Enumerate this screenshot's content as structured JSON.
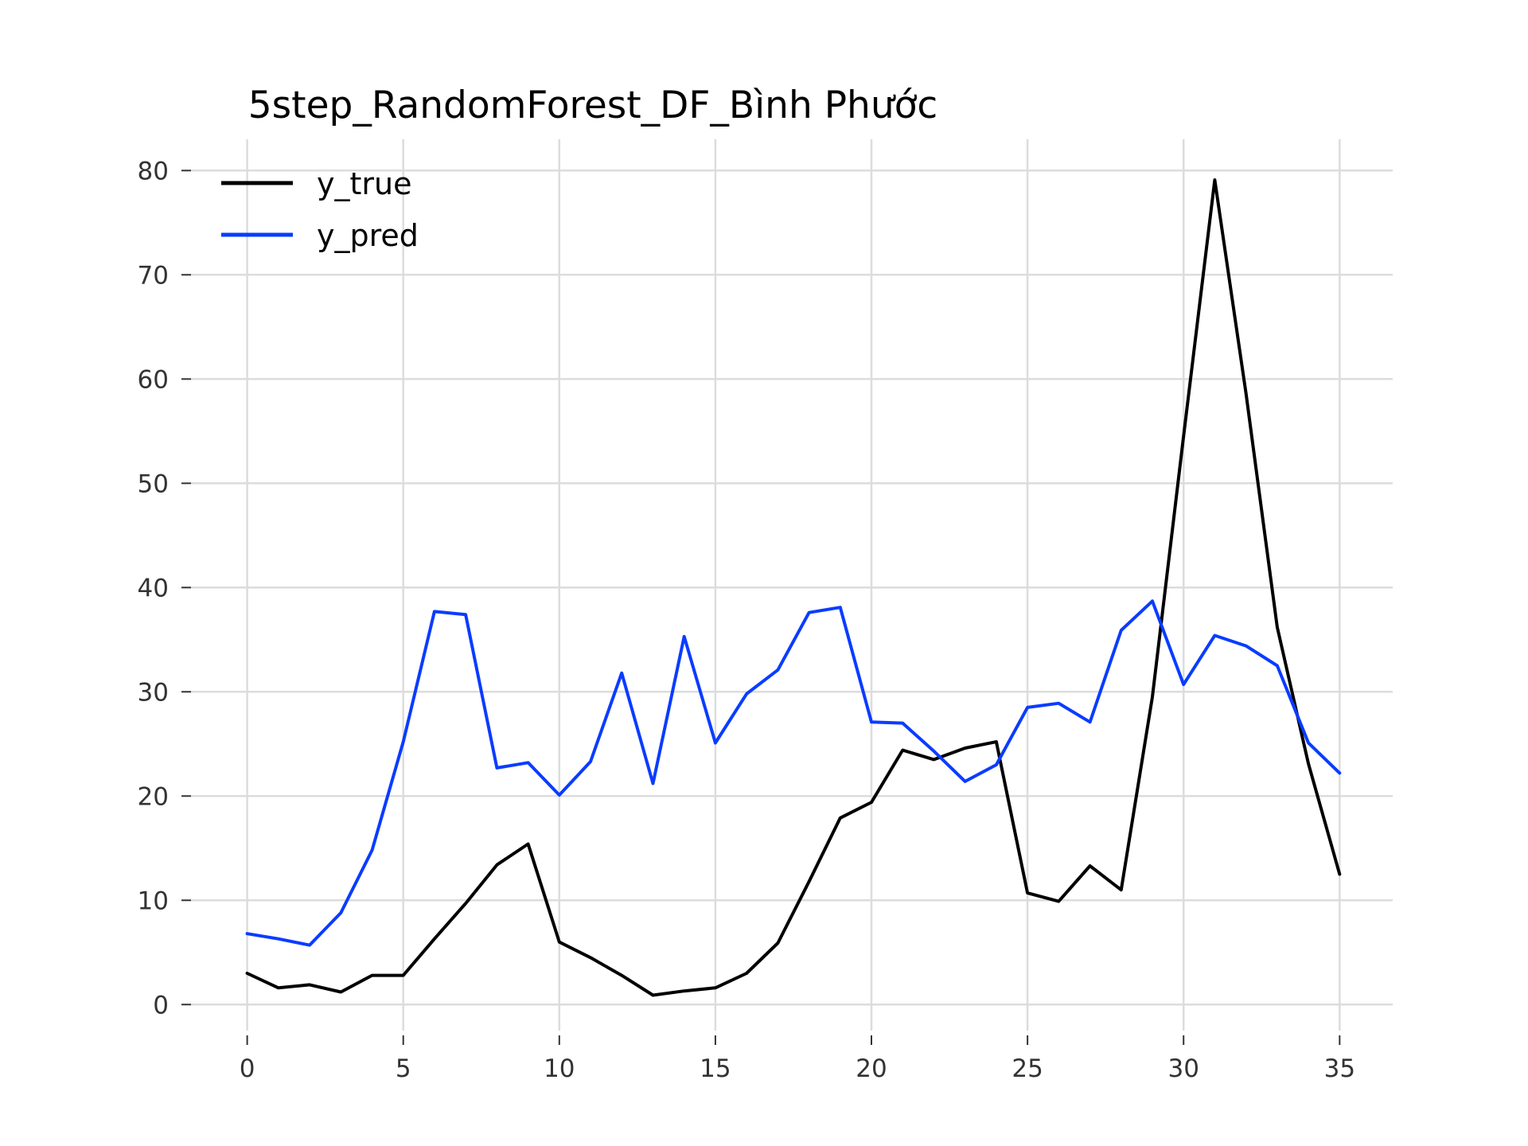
{
  "chart_data": {
    "type": "line",
    "title": "5step_RandomForest_DF_Bình Phước",
    "xlabel": "",
    "ylabel": "",
    "xlim": [
      -1.8,
      36.7
    ],
    "ylim": [
      -2.5,
      83
    ],
    "xticks": [
      0,
      5,
      10,
      15,
      20,
      25,
      30,
      35
    ],
    "yticks": [
      0,
      10,
      20,
      30,
      40,
      50,
      60,
      70,
      80
    ],
    "grid": true,
    "legend_position": "upper-left",
    "x": [
      0,
      1,
      2,
      3,
      4,
      5,
      6,
      7,
      8,
      9,
      10,
      11,
      12,
      13,
      14,
      15,
      16,
      17,
      18,
      19,
      20,
      21,
      22,
      23,
      24,
      25,
      26,
      27,
      28,
      29,
      30,
      31,
      32,
      33,
      34,
      35
    ],
    "series": [
      {
        "name": "y_true",
        "color": "#000000",
        "values": [
          3.0,
          1.6,
          1.9,
          1.2,
          2.8,
          2.8,
          6.3,
          9.7,
          13.4,
          15.4,
          6.0,
          4.5,
          2.8,
          0.9,
          1.3,
          1.6,
          3.0,
          5.9,
          11.8,
          17.9,
          19.4,
          24.4,
          23.5,
          24.6,
          25.2,
          10.7,
          9.9,
          13.3,
          11.0,
          29.5,
          54.5,
          79.1,
          58.6,
          36.2,
          23.1,
          12.5
        ]
      },
      {
        "name": "y_pred",
        "color": "#0a3cff",
        "values": [
          6.8,
          6.3,
          5.7,
          8.8,
          14.8,
          25.2,
          37.7,
          37.4,
          22.7,
          23.2,
          20.1,
          23.3,
          31.8,
          21.2,
          35.3,
          25.1,
          29.8,
          32.1,
          37.6,
          38.1,
          27.1,
          27.0,
          24.3,
          21.4,
          23.0,
          28.5,
          28.9,
          27.1,
          35.9,
          38.7,
          30.7,
          35.4,
          34.4,
          32.5,
          25.1,
          22.2
        ]
      }
    ]
  }
}
